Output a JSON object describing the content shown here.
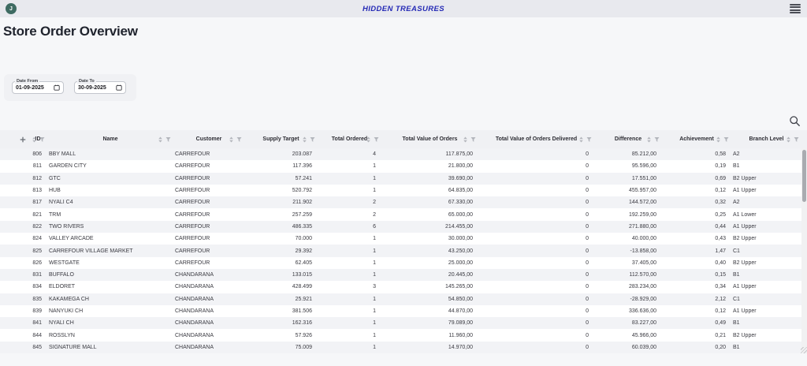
{
  "topbar": {
    "avatar_initial": "J",
    "app_title": "HIDDEN TREASURES"
  },
  "page": {
    "title": "Store Order Overview"
  },
  "filters": {
    "date_from": {
      "label": "Date From",
      "value": "01-09-2025"
    },
    "date_to": {
      "label": "Date To",
      "value": "30-09-2025"
    }
  },
  "icons": {
    "topbar_right": "hamburger-menu-icon",
    "avatar": "letter-avatar",
    "toolbar": "search-icon",
    "date_fields": "calendar-icon",
    "column_header": [
      "sort-icon",
      "column-menu-icon"
    ],
    "expand_column_header": "plus-icon"
  },
  "colors": {
    "topbar_bg": "#e8e9ee",
    "page_bg": "#f6f7f9",
    "brand_blue": "#2429b5",
    "avatar_teal": "#3e6b62",
    "header_row_bg": "#f0f1f4",
    "stripe_row_bg": "#f2f3f6",
    "icon_gray": "#b3b6bc"
  },
  "table": {
    "columns": [
      {
        "key": "expand",
        "label": ""
      },
      {
        "key": "id",
        "label": "ID"
      },
      {
        "key": "name",
        "label": "Name"
      },
      {
        "key": "customer",
        "label": "Customer"
      },
      {
        "key": "supply-target",
        "label": "Supply Target"
      },
      {
        "key": "total-ordered",
        "label": "Total Ordered"
      },
      {
        "key": "total-value-of-orders",
        "label": "Total Value of Orders"
      },
      {
        "key": "total-value-delivered",
        "label": "Total Value of Orders Delivered"
      },
      {
        "key": "difference",
        "label": "Difference"
      },
      {
        "key": "achievement",
        "label": "Achievement"
      },
      {
        "key": "branch-level",
        "label": "Branch Level"
      }
    ],
    "rows": [
      [
        "806",
        "BBY MALL",
        "CARREFOUR",
        "203.087",
        "4",
        "117.875,00",
        "0",
        "85.212,00",
        "0,58",
        "A2"
      ],
      [
        "811",
        "GARDEN CITY",
        "CARREFOUR",
        "117.396",
        "1",
        "21.800,00",
        "0",
        "95.596,00",
        "0,19",
        "B1"
      ],
      [
        "812",
        "GTC",
        "CARREFOUR",
        "57.241",
        "1",
        "39.690,00",
        "0",
        "17.551,00",
        "0,69",
        "B2 Upper"
      ],
      [
        "813",
        "HUB",
        "CARREFOUR",
        "520.792",
        "1",
        "64.835,00",
        "0",
        "455.957,00",
        "0,12",
        "A1 Upper"
      ],
      [
        "817",
        "NYALI C4",
        "CARREFOUR",
        "211.902",
        "2",
        "67.330,00",
        "0",
        "144.572,00",
        "0,32",
        "A2"
      ],
      [
        "821",
        "TRM",
        "CARREFOUR",
        "257.259",
        "2",
        "65.000,00",
        "0",
        "192.259,00",
        "0,25",
        "A1 Lower"
      ],
      [
        "822",
        "TWO RIVERS",
        "CARREFOUR",
        "486.335",
        "6",
        "214.455,00",
        "0",
        "271.880,00",
        "0,44",
        "A1 Upper"
      ],
      [
        "824",
        "VALLEY ARCADE",
        "CARREFOUR",
        "70.000",
        "1",
        "30.000,00",
        "0",
        "40.000,00",
        "0,43",
        "B2 Upper"
      ],
      [
        "825",
        "CARREFOUR VILLAGE MARKET",
        "CARREFOUR",
        "29.392",
        "1",
        "43.250,00",
        "0",
        "-13.858,00",
        "1,47",
        "C1"
      ],
      [
        "826",
        "WESTGATE",
        "CARREFOUR",
        "62.405",
        "1",
        "25.000,00",
        "0",
        "37.405,00",
        "0,40",
        "B2 Upper"
      ],
      [
        "831",
        "BUFFALO",
        "CHANDARANA",
        "133.015",
        "1",
        "20.445,00",
        "0",
        "112.570,00",
        "0,15",
        "B1"
      ],
      [
        "834",
        "ELDORET",
        "CHANDARANA",
        "428.499",
        "3",
        "145.265,00",
        "0",
        "283.234,00",
        "0,34",
        "A1 Upper"
      ],
      [
        "835",
        "KAKAMEGA CH",
        "CHANDARANA",
        "25.921",
        "1",
        "54.850,00",
        "0",
        "-28.929,00",
        "2,12",
        "C1"
      ],
      [
        "839",
        "NANYUKI CH",
        "CHANDARANA",
        "381.506",
        "1",
        "44.870,00",
        "0",
        "336.636,00",
        "0,12",
        "A1 Upper"
      ],
      [
        "841",
        "NYALI CH",
        "CHANDARANA",
        "162.316",
        "1",
        "79.089,00",
        "0",
        "83.227,00",
        "0,49",
        "B1"
      ],
      [
        "844",
        "ROSSLYN",
        "CHANDARANA",
        "57.926",
        "1",
        "11.960,00",
        "0",
        "45.966,00",
        "0,21",
        "B2 Upper"
      ],
      [
        "845",
        "SIGNATURE MALL",
        "CHANDARANA",
        "75.009",
        "1",
        "14.970,00",
        "0",
        "60.039,00",
        "0,20",
        "B1"
      ]
    ]
  }
}
